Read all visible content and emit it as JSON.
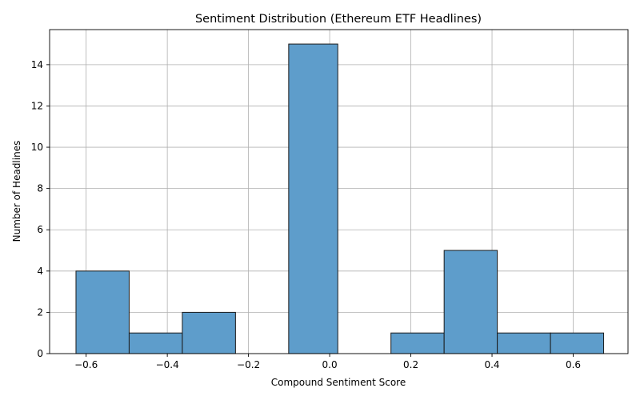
{
  "chart_data": {
    "type": "bar",
    "subtype": "histogram",
    "title": "Sentiment Distribution (Ethereum ETF Headlines)",
    "xlabel": "Compound Sentiment Score",
    "ylabel": "Number of Headlines",
    "xlim": [
      -0.69,
      0.735
    ],
    "ylim": [
      0,
      15.7
    ],
    "bin_edges": [
      -0.625,
      -0.494,
      -0.363,
      -0.232,
      -0.101,
      0.02,
      0.151,
      0.282,
      0.413,
      0.544,
      0.675
    ],
    "values": [
      4,
      1,
      2,
      0,
      15,
      0,
      1,
      5,
      1,
      1
    ],
    "x_ticks": [
      -0.6,
      -0.4,
      -0.2,
      0.0,
      0.2,
      0.4,
      0.6
    ],
    "x_tick_labels": [
      "−0.6",
      "−0.4",
      "−0.2",
      "0.0",
      "0.2",
      "0.4",
      "0.6"
    ],
    "y_ticks": [
      0,
      2,
      4,
      6,
      8,
      10,
      12,
      14
    ],
    "y_tick_labels": [
      "0",
      "2",
      "4",
      "6",
      "8",
      "10",
      "12",
      "14"
    ],
    "grid": true,
    "bar_color": "#5e9dcb",
    "edge_color": "#1a1a1a"
  }
}
